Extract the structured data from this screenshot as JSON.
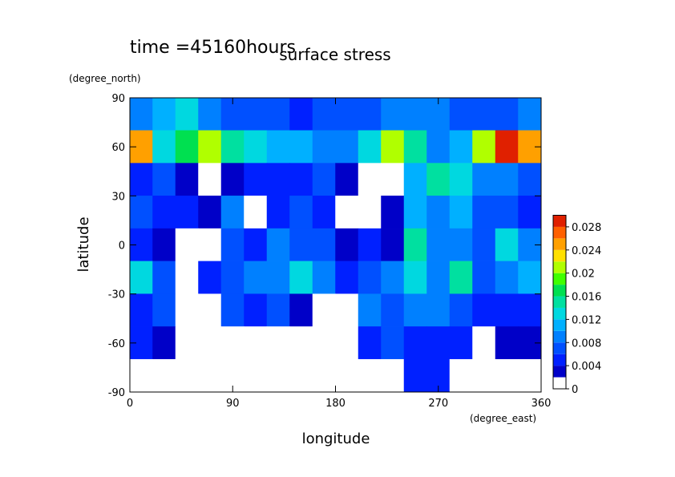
{
  "chart_data": {
    "type": "contour",
    "title": "surface stress",
    "subtitle": "time =45160hours",
    "x_label": "longitude",
    "x_unit": "(degree_east)",
    "y_label": "latitude",
    "y_unit": "(degree_north)",
    "xlim": [
      0,
      360
    ],
    "ylim": [
      -90,
      90
    ],
    "xticks": [
      0,
      90,
      180,
      270,
      360
    ],
    "yticks": [
      -90,
      -60,
      -30,
      0,
      30,
      60,
      90
    ],
    "x": [
      10,
      30,
      50,
      70,
      90,
      110,
      130,
      150,
      170,
      190,
      210,
      230,
      250,
      270,
      290,
      310,
      330,
      350
    ],
    "y": [
      80,
      60,
      40,
      20,
      0,
      -20,
      -40,
      -60,
      -80
    ],
    "z": [
      [
        0.008,
        0.01,
        0.012,
        0.008,
        0.006,
        0.006,
        0.006,
        0.005,
        0.006,
        0.006,
        0.006,
        0.008,
        0.008,
        0.008,
        0.006,
        0.006,
        0.006,
        0.008
      ],
      [
        0.024,
        0.012,
        0.016,
        0.02,
        0.014,
        0.012,
        0.01,
        0.01,
        0.008,
        0.008,
        0.012,
        0.02,
        0.014,
        0.008,
        0.01,
        0.02,
        0.028,
        0.024
      ],
      [
        0.004,
        0.006,
        0.003,
        0.001,
        0.003,
        0.004,
        0.004,
        0.004,
        0.006,
        0.002,
        0.001,
        0.001,
        0.01,
        0.014,
        0.012,
        0.008,
        0.008,
        0.006
      ],
      [
        0.006,
        0.004,
        0.004,
        0.002,
        0.008,
        0.001,
        0.004,
        0.006,
        0.004,
        0.001,
        0.001,
        0.002,
        0.01,
        0.008,
        0.01,
        0.006,
        0.006,
        0.004
      ],
      [
        0.004,
        0.002,
        0.001,
        0.001,
        0.006,
        0.004,
        0.008,
        0.006,
        0.006,
        0.002,
        0.004,
        0.003,
        0.014,
        0.008,
        0.008,
        0.006,
        0.012,
        0.008
      ],
      [
        0.012,
        0.006,
        0.001,
        0.004,
        0.006,
        0.008,
        0.008,
        0.012,
        0.008,
        0.004,
        0.006,
        0.008,
        0.012,
        0.008,
        0.014,
        0.006,
        0.008,
        0.01
      ],
      [
        0.004,
        0.006,
        0.001,
        0.001,
        0.006,
        0.004,
        0.006,
        0.002,
        0.001,
        0.001,
        0.008,
        0.006,
        0.008,
        0.008,
        0.006,
        0.004,
        0.004,
        0.004
      ],
      [
        0.004,
        0.002,
        0.001,
        0.001,
        0.001,
        0.001,
        0.001,
        0.001,
        0.001,
        0.001,
        0.004,
        0.006,
        0.004,
        0.004,
        0.004,
        0.001,
        0.002,
        0.002
      ],
      [
        0,
        0,
        0,
        0,
        0,
        0,
        0,
        0,
        0,
        0,
        0,
        0,
        0.004,
        0.004,
        0,
        0,
        0,
        0
      ]
    ],
    "clim": [
      0,
      0.03
    ],
    "cticks": [
      0,
      0.004,
      0.008,
      0.012,
      0.016,
      0.02,
      0.024,
      0.028
    ],
    "colors": [
      "#ffffff",
      "#0000c8",
      "#0020ff",
      "#0050ff",
      "#0080ff",
      "#00b0ff",
      "#00d8e0",
      "#00e0a0",
      "#00e050",
      "#40ff00",
      "#b0ff00",
      "#ffe000",
      "#ffa000",
      "#ff6000",
      "#e02000"
    ]
  }
}
